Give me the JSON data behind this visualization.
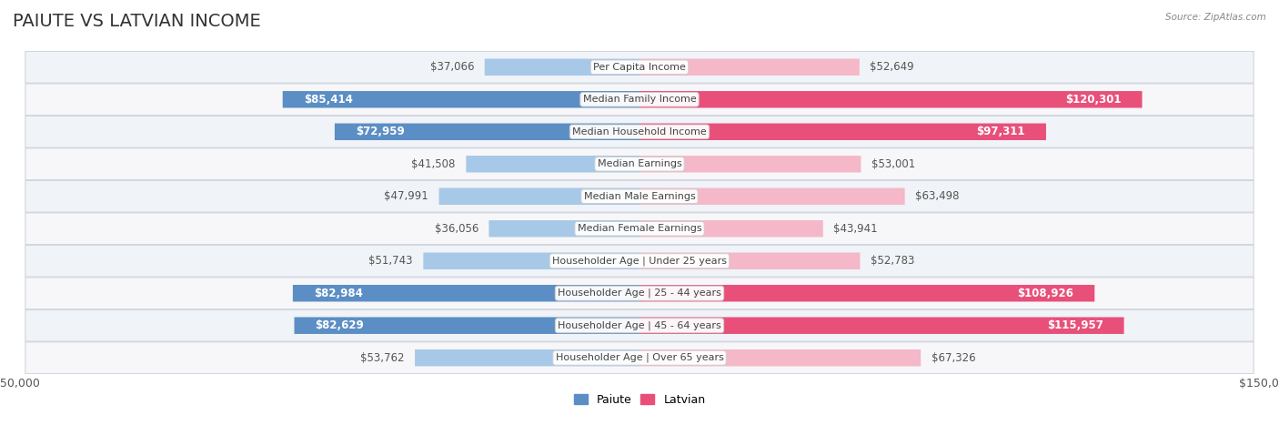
{
  "title": "PAIUTE VS LATVIAN INCOME",
  "source": "Source: ZipAtlas.com",
  "categories": [
    "Per Capita Income",
    "Median Family Income",
    "Median Household Income",
    "Median Earnings",
    "Median Male Earnings",
    "Median Female Earnings",
    "Householder Age | Under 25 years",
    "Householder Age | 25 - 44 years",
    "Householder Age | 45 - 64 years",
    "Householder Age | Over 65 years"
  ],
  "paiute_values": [
    37066,
    85414,
    72959,
    41508,
    47991,
    36056,
    51743,
    82984,
    82629,
    53762
  ],
  "latvian_values": [
    52649,
    120301,
    97311,
    53001,
    63498,
    43941,
    52783,
    108926,
    115957,
    67326
  ],
  "paiute_labels": [
    "$37,066",
    "$85,414",
    "$72,959",
    "$41,508",
    "$47,991",
    "$36,056",
    "$51,743",
    "$82,984",
    "$82,629",
    "$53,762"
  ],
  "latvian_labels": [
    "$52,649",
    "$120,301",
    "$97,311",
    "$53,001",
    "$63,498",
    "$43,941",
    "$52,783",
    "$108,926",
    "$115,957",
    "$67,326"
  ],
  "paiute_color_light": "#a8c8e8",
  "paiute_color_dark": "#5b8ec4",
  "latvian_color_light": "#f4b8c8",
  "latvian_color_dark": "#e8507a",
  "max_value": 150000,
  "bar_height": 0.52,
  "title_fontsize": 14,
  "label_fontsize": 8.5,
  "category_fontsize": 8.0,
  "axis_label_fontsize": 9,
  "paiute_threshold": 60000,
  "latvian_threshold": 90000
}
